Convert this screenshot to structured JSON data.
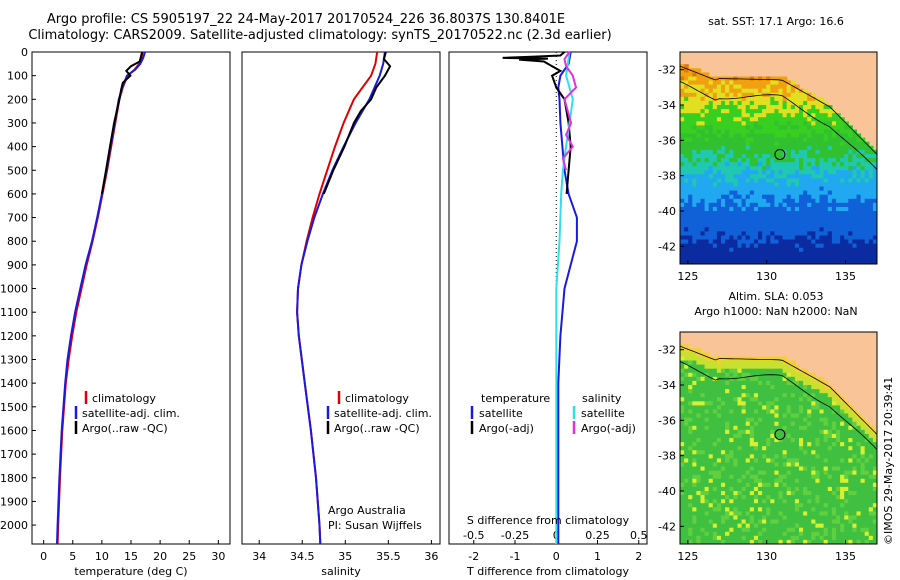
{
  "title": {
    "line1": "Argo profile: CS 5905197_22 24-May-2017 20170524_226 36.8037S 130.8401E",
    "line2": "Climatology: CARS2009. Satellite-adjusted climatology: synTS_20170522.nc (2.3d earlier)"
  },
  "colors": {
    "climatology": "#e00000",
    "satellite": "#1a1adf",
    "argo": "#000000",
    "salinity_satellite": "#2fe0e8",
    "salinity_argo": "#e030e0"
  },
  "chart_data": [
    {
      "type": "line",
      "name": "temperature-profile",
      "xlabel": "temperature (deg C)",
      "xlim": [
        -2,
        32
      ],
      "xticks": [
        0,
        5,
        10,
        15,
        20,
        25,
        30
      ],
      "ylim": [
        0,
        2080
      ],
      "yticks": [
        0,
        100,
        200,
        300,
        400,
        500,
        600,
        700,
        800,
        900,
        1000,
        1100,
        1200,
        1300,
        1400,
        1500,
        1600,
        1700,
        1800,
        1900,
        2000
      ],
      "legend": [
        "climatology",
        "satellite-adj. clim.",
        "Argo(..raw -QC)"
      ],
      "series": [
        {
          "name": "climatology",
          "color": "#e00000",
          "depth": [
            0,
            25,
            50,
            75,
            100,
            150,
            200,
            300,
            400,
            500,
            600,
            700,
            800,
            900,
            1000,
            1100,
            1200,
            1300,
            1400,
            1600,
            1800,
            2000,
            2080
          ],
          "values": [
            17.0,
            16.8,
            16.4,
            15.6,
            14.4,
            13.6,
            13.0,
            12.3,
            11.6,
            10.9,
            10.1,
            9.3,
            8.4,
            7.4,
            6.5,
            5.6,
            4.9,
            4.3,
            3.8,
            3.2,
            2.8,
            2.5,
            2.4
          ]
        },
        {
          "name": "satellite-adj. clim.",
          "color": "#1a1adf",
          "depth": [
            0,
            25,
            50,
            75,
            100,
            150,
            200,
            300,
            400,
            500,
            600,
            700,
            800,
            900,
            1000,
            1100,
            1200,
            1300,
            1400,
            1600,
            1800,
            2000,
            2080
          ],
          "values": [
            17.4,
            17.1,
            16.6,
            15.7,
            14.3,
            13.5,
            12.9,
            12.2,
            11.5,
            10.8,
            10.0,
            9.2,
            8.3,
            7.2,
            6.3,
            5.4,
            4.7,
            4.1,
            3.7,
            3.1,
            2.7,
            2.4,
            2.3
          ]
        },
        {
          "name": "Argo(..raw -QC)",
          "color": "#000000",
          "depth": [
            0,
            20,
            40,
            60,
            80,
            100,
            130,
            160,
            200,
            300,
            400,
            500,
            600
          ],
          "values": [
            16.9,
            16.7,
            16.5,
            15.0,
            14.2,
            14.9,
            13.6,
            13.3,
            13.0,
            12.1,
            11.4,
            10.7,
            10.0
          ]
        }
      ]
    },
    {
      "type": "line",
      "name": "salinity-profile",
      "xlabel": "salinity",
      "xlim": [
        33.8,
        36.1
      ],
      "xticks": [
        34,
        34.5,
        35,
        35.5,
        36
      ],
      "ylim": [
        0,
        2080
      ],
      "legend": [
        "climatology",
        "satellite-adj. clim.",
        "Argo(..raw -QC)"
      ],
      "annotations": [
        "Argo Australia",
        "PI: Susan Wijffels"
      ],
      "series": [
        {
          "name": "climatology",
          "color": "#e00000",
          "depth": [
            0,
            50,
            100,
            200,
            300,
            400,
            500,
            600,
            700,
            800,
            900,
            1000,
            1100,
            1200,
            1400,
            1600,
            1800,
            2000,
            2080
          ],
          "values": [
            35.37,
            35.35,
            35.3,
            35.1,
            34.98,
            34.88,
            34.79,
            34.7,
            34.62,
            34.55,
            34.49,
            34.45,
            34.44,
            34.46,
            34.53,
            34.6,
            34.66,
            34.7,
            34.71
          ]
        },
        {
          "name": "satellite-adj. clim.",
          "color": "#1a1adf",
          "depth": [
            0,
            50,
            100,
            200,
            300,
            400,
            500,
            600,
            700,
            800,
            900,
            1000,
            1100,
            1200,
            1400,
            1600,
            1800,
            2000,
            2080
          ],
          "values": [
            35.46,
            35.44,
            35.4,
            35.28,
            35.12,
            34.98,
            34.85,
            34.74,
            34.64,
            34.56,
            34.49,
            34.45,
            34.44,
            34.46,
            34.53,
            34.6,
            34.66,
            34.7,
            34.71
          ]
        },
        {
          "name": "Argo(..raw -QC)",
          "color": "#000000",
          "depth": [
            0,
            30,
            60,
            100,
            150,
            200,
            250,
            300,
            400,
            500,
            600
          ],
          "values": [
            35.47,
            35.45,
            35.52,
            35.46,
            35.36,
            35.3,
            35.18,
            35.1,
            34.99,
            34.86,
            34.75
          ]
        }
      ]
    },
    {
      "type": "line",
      "name": "difference-profile",
      "xlabel": "T difference from climatology",
      "xlabel2": "S difference from climatology",
      "xlim": [
        -2.6,
        2.2
      ],
      "xticks": [
        -2,
        -1,
        0,
        1,
        2
      ],
      "xticks2": [
        "-0.5",
        "-0.25",
        "0",
        "0.25",
        "0.5"
      ],
      "ylim": [
        0,
        2080
      ],
      "legend": {
        "temperature": "temperature",
        "salinity": "salinity",
        "items": [
          "satellite",
          "Argo(-adj)",
          "satellite",
          "Argo(-adj)"
        ]
      },
      "series": [
        {
          "name": "temperature satellite",
          "color": "#1a1adf",
          "depth": [
            0,
            50,
            100,
            150,
            200,
            300,
            400,
            500,
            600,
            700,
            800,
            900,
            1000,
            1200,
            1400,
            1600,
            1800,
            2000,
            2080
          ],
          "values": [
            0.35,
            0.3,
            0.1,
            0.05,
            0.08,
            0.1,
            0.15,
            0.2,
            0.3,
            0.5,
            0.5,
            0.35,
            0.2,
            0.1,
            0.05,
            0.05,
            0.05,
            0.05,
            0.05
          ]
        },
        {
          "name": "temperature Argo(-adj)",
          "color": "#000000",
          "depth": [
            0,
            15,
            20,
            25,
            28,
            32,
            40,
            60,
            80,
            100,
            150,
            200,
            300,
            400,
            500,
            600
          ],
          "values": [
            0.2,
            0.1,
            -0.6,
            -1.3,
            -0.2,
            -0.9,
            -0.3,
            -0.1,
            0.1,
            -0.1,
            0.0,
            0.2,
            0.3,
            0.35,
            0.3,
            0.25
          ]
        },
        {
          "name": "salinity satellite",
          "color": "#2fe0e8",
          "depth": [
            0,
            100,
            200,
            300,
            400,
            500,
            600,
            800,
            1000,
            1200,
            1400,
            1600,
            1800,
            2000,
            2080
          ],
          "values": [
            0.08,
            0.06,
            0.1,
            0.08,
            0.06,
            0.04,
            0.03,
            0.02,
            0.0,
            0.0,
            0.0,
            0.0,
            0.0,
            0.0,
            0.0
          ]
        },
        {
          "name": "salinity Argo(-adj)",
          "color": "#e030e0",
          "depth": [
            0,
            30,
            60,
            100,
            150,
            200,
            300,
            350,
            400,
            450,
            500
          ],
          "values": [
            0.08,
            0.05,
            0.06,
            0.1,
            0.12,
            0.05,
            0.09,
            0.06,
            0.1,
            0.04,
            0.06
          ]
        }
      ]
    },
    {
      "type": "heatmap",
      "name": "sst-map",
      "title": "sat. SST: 17.1 Argo: 16.6",
      "xlim": [
        124.5,
        137
      ],
      "ylim": [
        -43,
        -31
      ],
      "xticks": [
        125,
        130,
        135
      ],
      "yticks": [
        -32,
        -34,
        -36,
        -38,
        -40,
        -42
      ],
      "marker": {
        "lon": 130.84,
        "lat": -36.8
      }
    },
    {
      "type": "heatmap",
      "name": "sla-map",
      "title": "Altim. SLA: 0.053",
      "subtitle": "Argo h1000: NaN h2000: NaN",
      "xlim": [
        124.5,
        137
      ],
      "ylim": [
        -43,
        -31
      ],
      "xticks": [
        125,
        130,
        135
      ],
      "yticks": [
        -32,
        -34,
        -36,
        -38,
        -40,
        -42
      ],
      "marker": {
        "lon": 130.84,
        "lat": -36.8
      }
    }
  ],
  "panel_labels": {
    "temp_legend": [
      "climatology",
      "satellite-adj. clim.",
      "Argo(..raw -QC)"
    ],
    "sal_legend": [
      "climatology",
      "satellite-adj. clim.",
      "Argo(..raw -QC)"
    ],
    "sal_note1": "Argo Australia",
    "sal_note2": "PI: Susan Wijffels",
    "diff_temperature": "temperature",
    "diff_salinity": "salinity",
    "diff_sat": "satellite",
    "diff_argo": "Argo(-adj)",
    "diff_sat2": "satellite",
    "diff_argo2": "Argo(-adj)",
    "credit": "©IMOS 29-May-2017 20:39:41"
  }
}
